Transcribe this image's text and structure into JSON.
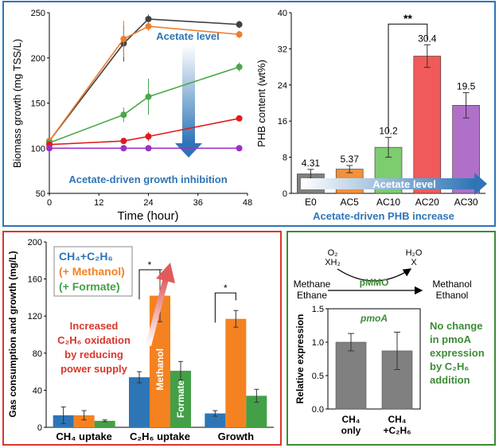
{
  "chart_data": [
    {
      "type": "line",
      "xlabel": "Time (hour)",
      "ylabel": "Biomass growth (mg TSS/L)",
      "xlim": [
        0,
        48
      ],
      "ylim": [
        50,
        250
      ],
      "xticks": [
        "0",
        "12",
        "24",
        "36",
        "48"
      ],
      "yticks": [
        "50",
        "100",
        "150",
        "200",
        "250"
      ],
      "series": [
        {
          "color": "#404040",
          "x": [
            0,
            18,
            24,
            46
          ],
          "y": [
            108,
            216,
            243,
            237
          ],
          "err": [
            3,
            20,
            5,
            4
          ]
        },
        {
          "color": "#ed7d31",
          "x": [
            0,
            18,
            24,
            46
          ],
          "y": [
            108,
            221,
            235,
            226
          ],
          "err": [
            3,
            20,
            5,
            4
          ]
        },
        {
          "color": "#4aa84a",
          "x": [
            0,
            18,
            24,
            46
          ],
          "y": [
            106,
            137,
            157,
            190
          ],
          "err": [
            3,
            8,
            20,
            5
          ]
        },
        {
          "color": "#e31a1c",
          "x": [
            0,
            18,
            24,
            46
          ],
          "y": [
            104,
            108,
            113,
            133
          ],
          "err": [
            3,
            2,
            5,
            3
          ]
        },
        {
          "color": "#9b30c8",
          "x": [
            0,
            18,
            24,
            46
          ],
          "y": [
            100,
            100,
            100,
            100
          ],
          "err": [
            2,
            2,
            2,
            2
          ]
        }
      ],
      "annotations": {
        "arrow_label": "Acetate level",
        "bottom_label": "Acetate-driven growth inhibition"
      }
    },
    {
      "type": "bar",
      "ylabel": "PHB content (wt%)",
      "ylim": [
        0,
        40
      ],
      "yticks": [
        "0",
        "8",
        "16",
        "24",
        "32",
        "40"
      ],
      "categories": [
        "E0",
        "AC5",
        "AC10",
        "AC20",
        "AC30"
      ],
      "values": [
        4.31,
        5.37,
        10.2,
        30.4,
        19.5
      ],
      "value_labels": [
        "4.31",
        "5.37",
        "10.2",
        "30.4",
        "19.5"
      ],
      "err": [
        1.0,
        0.8,
        2.2,
        2.5,
        2.8
      ],
      "colors": [
        "#808080",
        "#f0913b",
        "#7dcc6e",
        "#f05a5a",
        "#b070c8"
      ],
      "significance": "**",
      "annotations": {
        "arrow_label": "Acetate level",
        "caption": "Acetate-driven PHB increase"
      }
    },
    {
      "type": "bar",
      "ylabel": "Gas consumption and growth (mg/L)",
      "ylim": [
        0,
        200
      ],
      "yticks": [
        "0",
        "40",
        "80",
        "120",
        "160",
        "200"
      ],
      "categories": [
        "CH₄ uptake",
        "C₂H₆ uptake",
        "Growth"
      ],
      "series": [
        {
          "name": "CH₄+C₂H₆",
          "color": "#2e75b6",
          "values": [
            13,
            54,
            15
          ],
          "err": [
            9,
            6,
            3
          ]
        },
        {
          "name": "(+ Methanol)",
          "color": "#f58220",
          "values": [
            13,
            142,
            117
          ],
          "err": [
            5,
            28,
            9
          ]
        },
        {
          "name": "(+ Formate)",
          "color": "#43a047",
          "values": [
            7,
            61,
            34
          ],
          "err": [
            1,
            10,
            7
          ]
        }
      ],
      "bar_labels": [
        "Methanol",
        "Formate"
      ],
      "significance": [
        "*",
        "*"
      ],
      "annotation": "Increased C₂H₆ oxidation by reducing power supply"
    },
    {
      "type": "bar",
      "title": "pmoA",
      "ylabel": "Relative expression",
      "ylim": [
        0,
        1.5
      ],
      "yticks": [
        "0.0",
        "0.5",
        "1.0",
        "1.5"
      ],
      "categories": [
        "CH₄ only",
        "CH₄ +C₂H₆"
      ],
      "values": [
        1.0,
        0.87
      ],
      "err": [
        0.13,
        0.28
      ],
      "color": "#808080",
      "annotation": "No change in pmoA expression by C₂H₆ addition"
    }
  ],
  "reaction": {
    "o2": "O₂",
    "xh2": "XH₂",
    "h2o": "H₂O",
    "x": "X",
    "substrate1": "Methane",
    "substrate2": "Ethane",
    "product1": "Methanol",
    "product2": "Ethanol",
    "enzyme": "pMMO"
  }
}
